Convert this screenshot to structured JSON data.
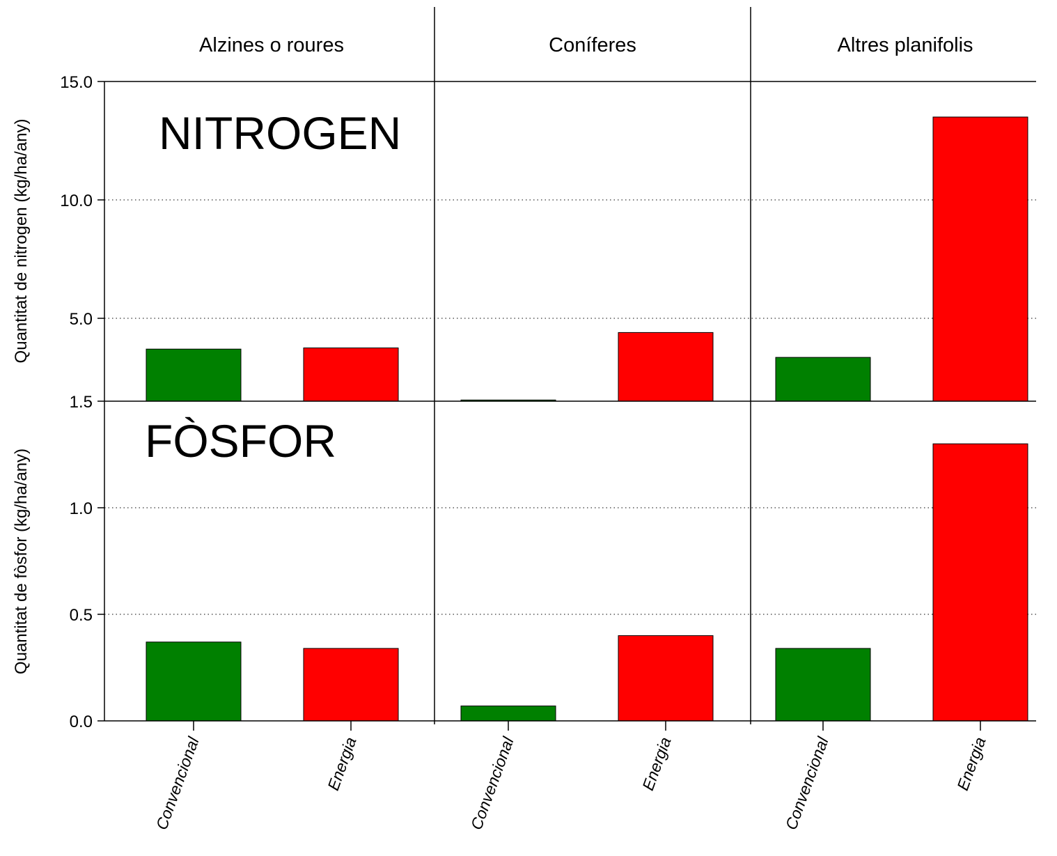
{
  "chart_data": [
    {
      "type": "bar",
      "title": "NITROGEN",
      "ylabel": "Quantitat de nitrogen (kg/ha/any)",
      "ylim": [
        1.5,
        15.0
      ],
      "yticks": [
        "1.5",
        "5.0",
        "10.0",
        "15.0"
      ],
      "yticks_values": [
        1.5,
        5.0,
        10.0,
        15.0
      ],
      "grid": true,
      "groups": [
        {
          "name": "Alzines o roures",
          "categories": [
            "Convencional",
            "Energia"
          ],
          "values": [
            3.7,
            3.75
          ]
        },
        {
          "name": "Coníferes",
          "categories": [
            "Convencional",
            "Energia"
          ],
          "values": [
            1.55,
            4.4
          ]
        },
        {
          "name": "Altres planifolis",
          "categories": [
            "Convencional",
            "Energia"
          ],
          "values": [
            3.35,
            13.5
          ]
        }
      ]
    },
    {
      "type": "bar",
      "title": "FÒSFOR",
      "ylabel": "Quantitat de fòsfor (kg/ha/any)",
      "ylim": [
        0.0,
        1.5
      ],
      "yticks": [
        "0.0",
        "0.5",
        "1.0"
      ],
      "yticks_values": [
        0.0,
        0.5,
        1.0
      ],
      "grid": true,
      "groups": [
        {
          "name": "Alzines o roures",
          "categories": [
            "Convencional",
            "Energia"
          ],
          "values": [
            0.37,
            0.34
          ]
        },
        {
          "name": "Coníferes",
          "categories": [
            "Convencional",
            "Energia"
          ],
          "values": [
            0.07,
            0.4
          ]
        },
        {
          "name": "Altres planifolis",
          "categories": [
            "Convencional",
            "Energia"
          ],
          "values": [
            0.34,
            1.3
          ]
        }
      ]
    }
  ],
  "colors": {
    "Convencional": "#008000",
    "Energia": "#ff0000",
    "axis": "#000000",
    "grid": "#000000"
  }
}
